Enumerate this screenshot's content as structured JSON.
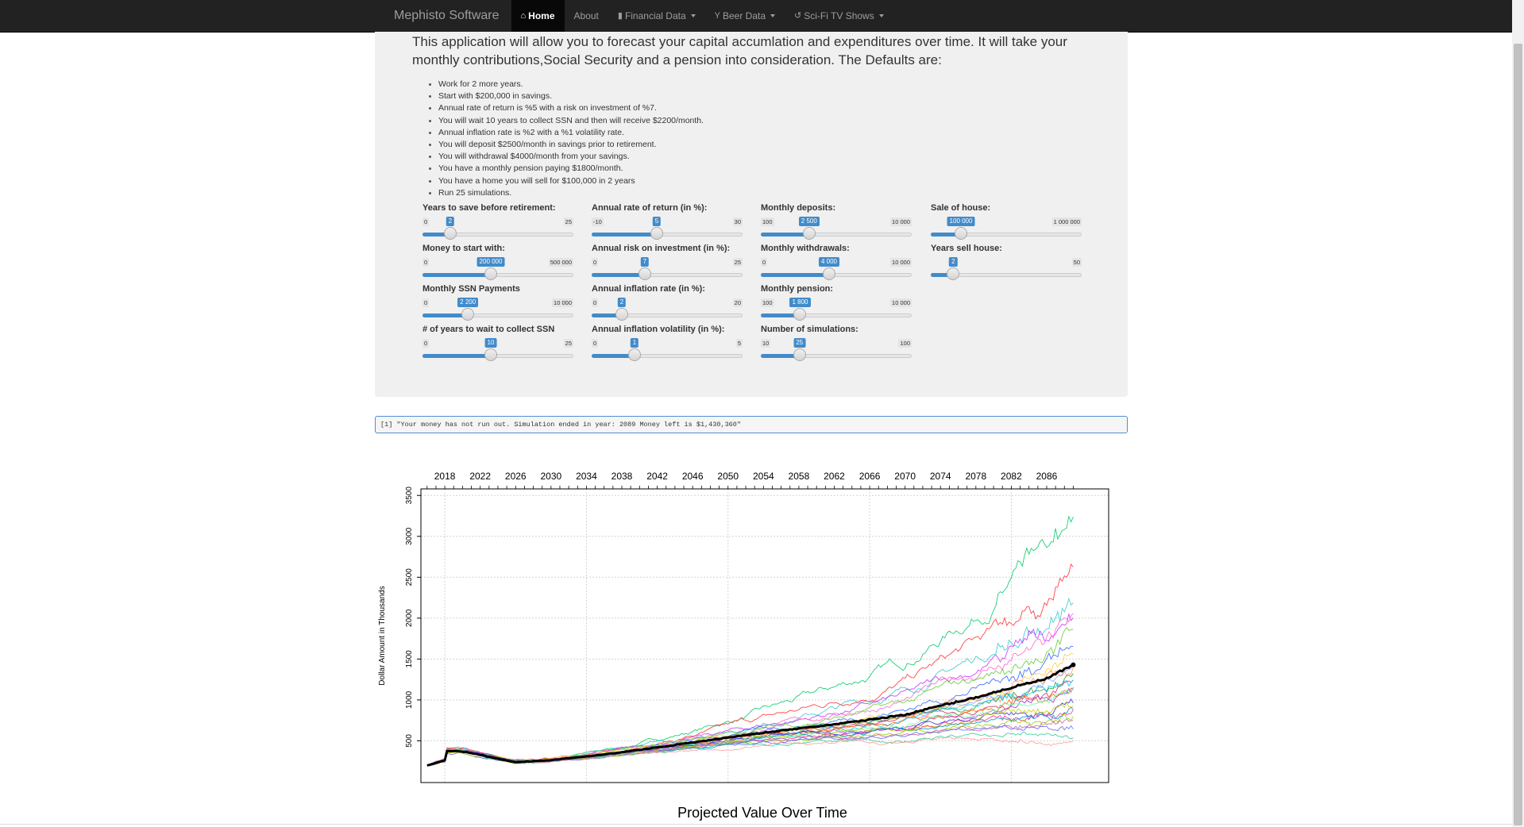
{
  "nav": {
    "brand": "Mephisto Software",
    "items": [
      {
        "label": "Home",
        "icon": "home-icon",
        "active": true,
        "dropdown": false
      },
      {
        "label": "About",
        "icon": "",
        "active": false,
        "dropdown": false
      },
      {
        "label": "Financial Data",
        "icon": "bar-chart-icon",
        "active": false,
        "dropdown": true
      },
      {
        "label": "Beer Data",
        "icon": "glass-icon",
        "active": false,
        "dropdown": true
      },
      {
        "label": "Sci-Fi TV Shows",
        "icon": "refresh-icon",
        "active": false,
        "dropdown": true
      }
    ]
  },
  "intro": "This application will allow you to forecast your capital accumlation and expenditures over time. It will take your monthly contributions,Social Security and a pension into consideration. The Defaults are:",
  "defaults": [
    "Work for 2 more years.",
    "Start with $200,000 in savings.",
    "Annual rate of return is %5 with a risk on investment of %7.",
    "You will wait 10 years to collect SSN and then will receive $2200/month.",
    "Annual inflation rate is %2 with a %1 volatility rate.",
    "You will deposit $2500/month in savings prior to retirement.",
    "You will withdrawal $4000/month from your savings.",
    "You have a monthly pension paying $1800/month.",
    "You have a home you will sell for $100,000 in 2 years",
    "Run 25 simulations."
  ],
  "sliders": [
    {
      "label": "Years to save before retirement:",
      "min": 0,
      "max": 25,
      "value": 2,
      "min_text": "0",
      "max_text": "25",
      "value_text": "2"
    },
    {
      "label": "Annual rate of return (in %):",
      "min": -10,
      "max": 30,
      "value": 5,
      "min_text": "-10",
      "max_text": "30",
      "value_text": "5"
    },
    {
      "label": "Monthly deposits:",
      "min": 100,
      "max": 10000,
      "value": 2500,
      "min_text": "100",
      "max_text": "10 000",
      "value_text": "2 500"
    },
    {
      "label": "Sale of house:",
      "min": 0,
      "max": 1000000,
      "value": 100000,
      "min_text": "",
      "max_text": "1 000 000",
      "value_text": "100 000"
    },
    {
      "label": "Money to start with:",
      "min": 0,
      "max": 500000,
      "value": 200000,
      "min_text": "0",
      "max_text": "500 000",
      "value_text": "200 000"
    },
    {
      "label": "Annual risk on investment (in %):",
      "min": 0,
      "max": 25,
      "value": 7,
      "min_text": "0",
      "max_text": "25",
      "value_text": "7"
    },
    {
      "label": "Monthly withdrawals:",
      "min": 0,
      "max": 10000,
      "value": 4000,
      "min_text": "0",
      "max_text": "10 000",
      "value_text": "4 000"
    },
    {
      "label": "Years sell house:",
      "min": 0,
      "max": 50,
      "value": 2,
      "min_text": "",
      "max_text": "50",
      "value_text": "2"
    },
    {
      "label": "Monthly SSN Payments",
      "min": 0,
      "max": 10000,
      "value": 2200,
      "min_text": "0",
      "max_text": "10 000",
      "value_text": "2 200"
    },
    {
      "label": "Annual inflation rate (in %):",
      "min": 0,
      "max": 20,
      "value": 2,
      "min_text": "0",
      "max_text": "20",
      "value_text": "2"
    },
    {
      "label": "Monthly pension:",
      "min": 100,
      "max": 10000,
      "value": 1800,
      "min_text": "100",
      "max_text": "10 000",
      "value_text": "1 800"
    },
    {
      "label": "# of years to wait to collect SSN",
      "min": 0,
      "max": 25,
      "value": 10,
      "min_text": "0",
      "max_text": "25",
      "value_text": "10"
    },
    {
      "label": "Annual inflation volatility (in %):",
      "min": 0,
      "max": 5,
      "value": 1,
      "min_text": "0",
      "max_text": "5",
      "value_text": "1"
    },
    {
      "label": "Number of simulations:",
      "min": 10,
      "max": 100,
      "value": 25,
      "min_text": "10",
      "max_text": "100",
      "value_text": "25"
    }
  ],
  "output_text": "[1] \"Your money has not run out. Simulation ended in year: 2089 Money left is $1,430,360\"",
  "chart_data": {
    "type": "line",
    "title": "Projected Value Over Time",
    "xlabel": "",
    "ylabel": "Dollar Amount in Thousands",
    "x_tick_labels": [
      "2018",
      "2022",
      "2026",
      "2030",
      "2034",
      "2038",
      "2042",
      "2046",
      "2050",
      "2054",
      "2058",
      "2062",
      "2066",
      "2070",
      "2074",
      "2078",
      "2082",
      "2086"
    ],
    "y_tick_labels": [
      "500",
      "1000",
      "1500",
      "2000",
      "2500",
      "3000",
      "3500"
    ],
    "xlim": [
      2015.3,
      2093.0
    ],
    "ylim": [
      -10,
      3580
    ],
    "x_axis_position": "top",
    "grid": true,
    "simulation_count": 25,
    "series_colors": [
      "#00cc66",
      "#ff3333",
      "#33cccc",
      "#cc33ff",
      "#ff66cc",
      "#66cc33",
      "#3366ff",
      "#ffcc33",
      "#ff9966",
      "#9999ff",
      "#339933",
      "#cc3366",
      "#00ccff",
      "#ff6600",
      "#9933cc",
      "#66ff99",
      "#3333cc",
      "#cccc00",
      "#ff3399",
      "#0099cc",
      "#99cc00",
      "#cc6699",
      "#6666ff",
      "#33cc99",
      "#ff9999"
    ],
    "series_end_values": [
      3300,
      2600,
      2300,
      2050,
      1950,
      1800,
      1650,
      1500,
      1400,
      1350,
      1300,
      1250,
      1200,
      1150,
      1100,
      1050,
      1000,
      950,
      900,
      850,
      800,
      750,
      650,
      550,
      480
    ],
    "mean_series": {
      "name": "",
      "color": "#000000",
      "x": [
        2016,
        2017,
        2018,
        2018.1,
        2020,
        2022,
        2024,
        2026,
        2028,
        2030,
        2034,
        2038,
        2042,
        2046,
        2050,
        2054,
        2058,
        2062,
        2066,
        2070,
        2074,
        2078,
        2082,
        2086,
        2089
      ],
      "y": [
        200,
        230,
        260,
        380,
        370,
        330,
        280,
        240,
        250,
        265,
        310,
        360,
        420,
        480,
        540,
        600,
        650,
        700,
        760,
        820,
        930,
        1030,
        1150,
        1260,
        1430
      ]
    }
  }
}
